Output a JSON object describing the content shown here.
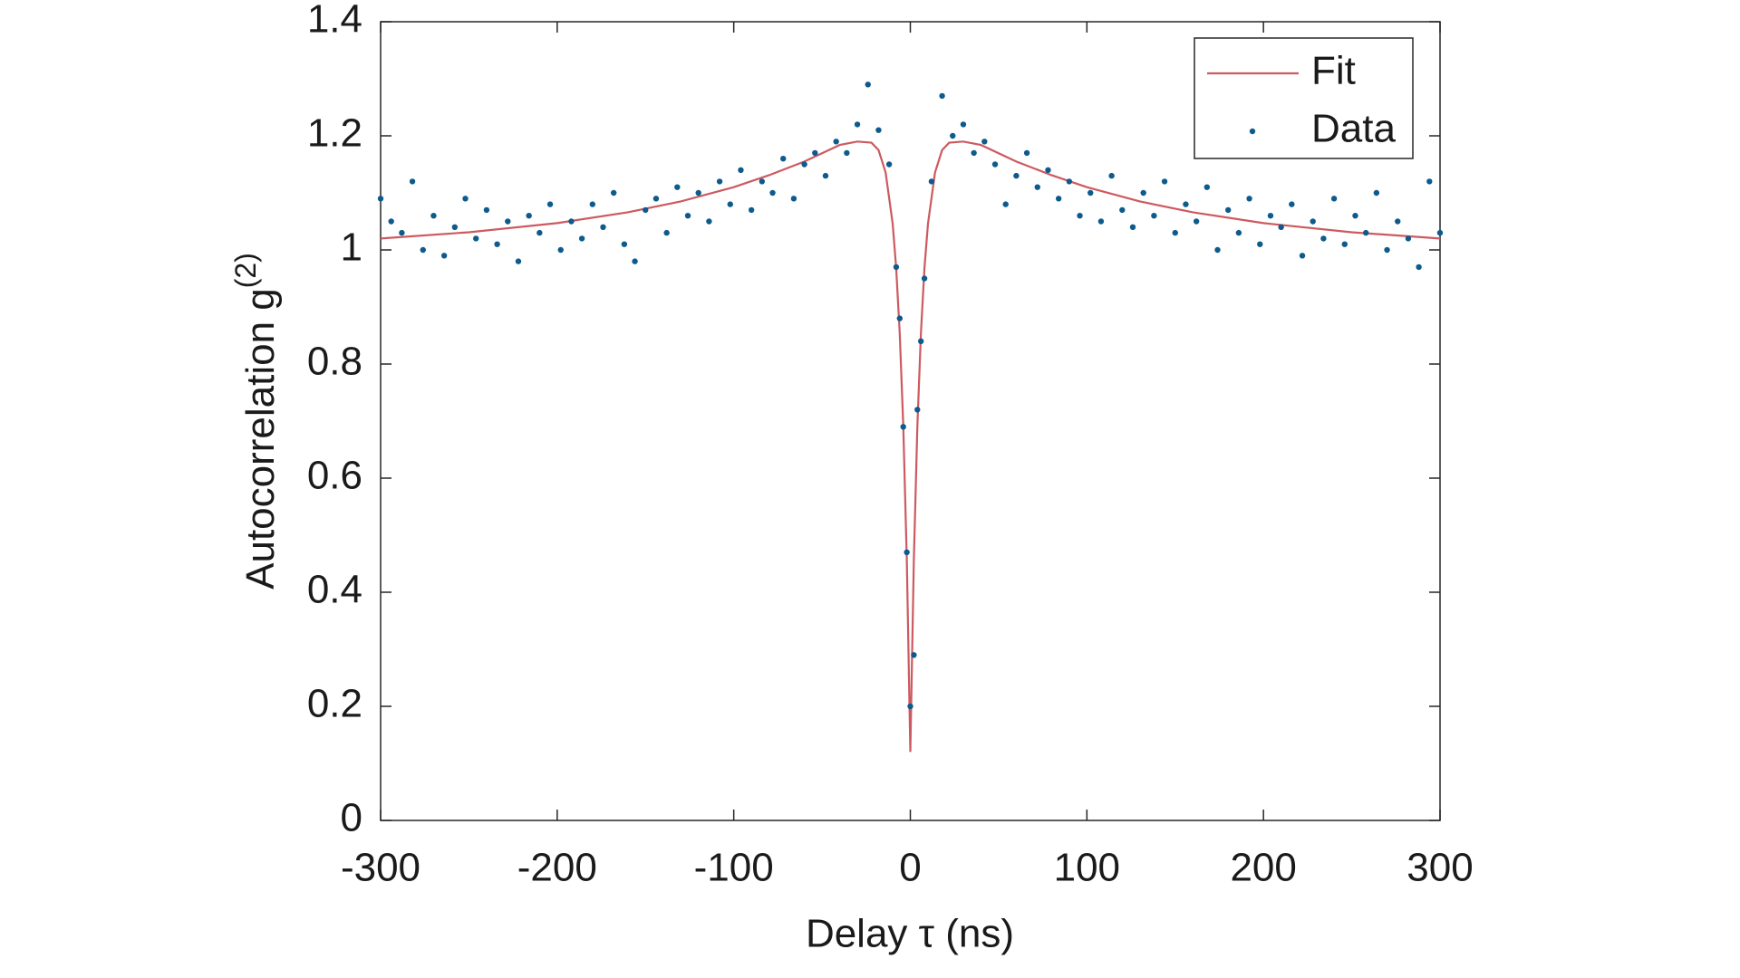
{
  "chart_data": {
    "type": "scatter",
    "xlabel": "Delay τ (ns)",
    "ylabel": {
      "text": "Autocorrelation g",
      "superscript": "(2)"
    },
    "xlim": [
      -300,
      300
    ],
    "ylim": [
      0,
      1.4
    ],
    "xticks": [
      -300,
      -200,
      -100,
      0,
      100,
      200,
      300
    ],
    "yticks": [
      0,
      0.2,
      0.4,
      0.6,
      0.8,
      1,
      1.2,
      1.4
    ],
    "legend": "upper-right",
    "series": [
      {
        "name": "Fit",
        "mode": "line",
        "color": "#cc5a60",
        "x": [
          -300,
          -250,
          -200,
          -160,
          -130,
          -100,
          -80,
          -60,
          -40,
          -30,
          -22,
          -18,
          -14,
          -10,
          -8,
          -6,
          -4,
          -2,
          0,
          2,
          4,
          6,
          8,
          10,
          14,
          18,
          22,
          30,
          40,
          60,
          80,
          100,
          130,
          160,
          200,
          250,
          300
        ],
        "values": [
          1.02,
          1.031,
          1.047,
          1.066,
          1.085,
          1.11,
          1.131,
          1.155,
          1.184,
          1.19,
          1.188,
          1.175,
          1.136,
          1.046,
          0.968,
          0.854,
          0.692,
          0.458,
          0.12,
          0.458,
          0.692,
          0.854,
          0.968,
          1.046,
          1.136,
          1.175,
          1.188,
          1.19,
          1.184,
          1.155,
          1.131,
          1.11,
          1.085,
          1.066,
          1.047,
          1.031,
          1.02
        ]
      },
      {
        "name": "Data",
        "mode": "markers",
        "color": "#0d5b8c",
        "x": [
          -300,
          -294,
          -288,
          -282,
          -276,
          -270,
          -264,
          -258,
          -252,
          -246,
          -240,
          -234,
          -228,
          -222,
          -216,
          -210,
          -204,
          -198,
          -192,
          -186,
          -180,
          -174,
          -168,
          -162,
          -156,
          -150,
          -144,
          -138,
          -132,
          -126,
          -120,
          -114,
          -108,
          -102,
          -96,
          -90,
          -84,
          -78,
          -72,
          -66,
          -60,
          -54,
          -48,
          -42,
          -36,
          -30,
          -24,
          -18,
          -12,
          -8,
          -6,
          -4,
          -2,
          0,
          2,
          4,
          6,
          8,
          12,
          18,
          24,
          30,
          36,
          42,
          48,
          54,
          60,
          66,
          72,
          78,
          84,
          90,
          96,
          102,
          108,
          114,
          120,
          126,
          132,
          138,
          144,
          150,
          156,
          162,
          168,
          174,
          180,
          186,
          192,
          198,
          204,
          210,
          216,
          222,
          228,
          234,
          240,
          246,
          252,
          258,
          264,
          270,
          276,
          282,
          288,
          294,
          300
        ],
        "values": [
          1.09,
          1.05,
          1.03,
          1.12,
          1.0,
          1.06,
          0.99,
          1.04,
          1.09,
          1.02,
          1.07,
          1.01,
          1.05,
          0.98,
          1.06,
          1.03,
          1.08,
          1.0,
          1.05,
          1.02,
          1.08,
          1.04,
          1.1,
          1.01,
          0.98,
          1.07,
          1.09,
          1.03,
          1.11,
          1.06,
          1.1,
          1.05,
          1.12,
          1.08,
          1.14,
          1.07,
          1.12,
          1.1,
          1.16,
          1.09,
          1.15,
          1.17,
          1.13,
          1.19,
          1.17,
          1.22,
          1.29,
          1.21,
          1.15,
          0.97,
          0.88,
          0.69,
          0.47,
          0.2,
          0.29,
          0.72,
          0.84,
          0.95,
          1.12,
          1.27,
          1.2,
          1.22,
          1.17,
          1.19,
          1.15,
          1.08,
          1.13,
          1.17,
          1.11,
          1.14,
          1.09,
          1.12,
          1.06,
          1.1,
          1.05,
          1.13,
          1.07,
          1.04,
          1.1,
          1.06,
          1.12,
          1.03,
          1.08,
          1.05,
          1.11,
          1.0,
          1.07,
          1.03,
          1.09,
          1.01,
          1.06,
          1.04,
          1.08,
          0.99,
          1.05,
          1.02,
          1.09,
          1.01,
          1.06,
          1.03,
          1.1,
          1.0,
          1.05,
          1.02,
          0.97,
          1.12,
          1.03
        ]
      }
    ]
  }
}
